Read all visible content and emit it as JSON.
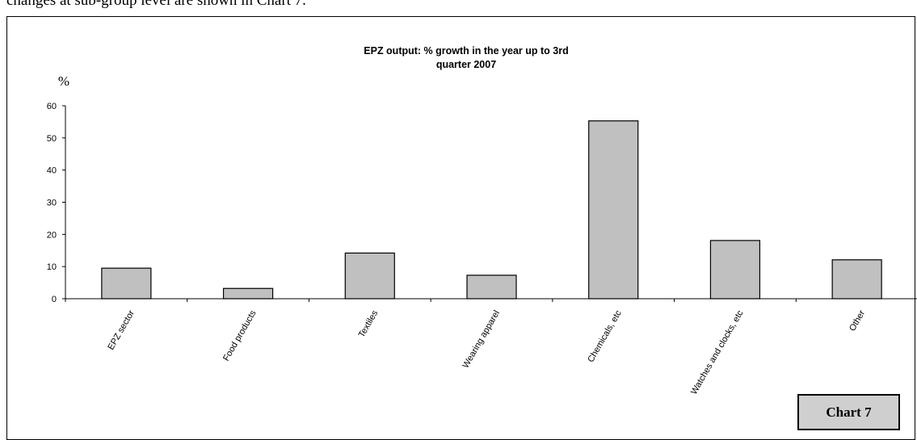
{
  "intro_text": "changes at sub-group level are shown in Chart 7.",
  "chart_label": "Chart 7",
  "chart_data": {
    "type": "bar",
    "title_line1": "EPZ output: % growth in the year up to 3rd",
    "title_line2": "quarter 2007",
    "ylabel": "%",
    "xlabel": "",
    "ylim": [
      0,
      60
    ],
    "yticks": [
      0,
      10,
      20,
      30,
      40,
      50,
      60
    ],
    "grid": false,
    "categories": [
      "EPZ sector",
      "Food products",
      "Textiles",
      "Wearing apparel",
      "Chemicals, etc",
      "Watches and clocks, etc",
      "Other"
    ],
    "values": [
      9.5,
      3.2,
      14.2,
      7.3,
      55.3,
      18.1,
      12.1
    ],
    "bar_color": "#c0c0c0"
  }
}
